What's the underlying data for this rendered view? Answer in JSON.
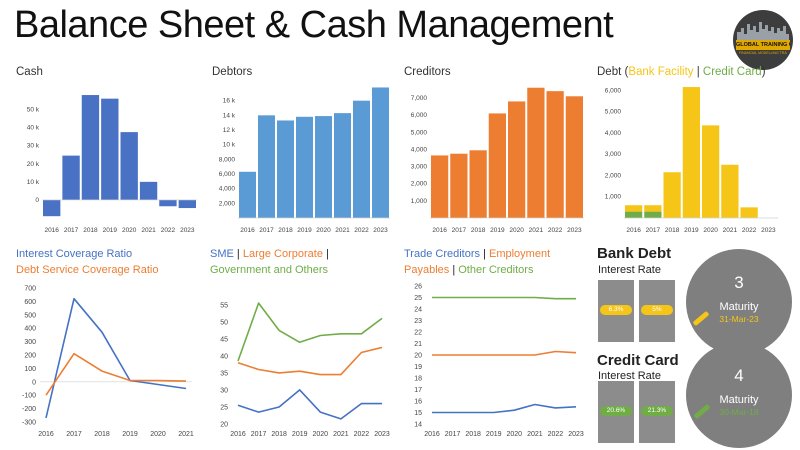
{
  "page": {
    "title": "Balance Sheet & Cash Management",
    "logo_text": "GLOBAL TRAINING CAMP",
    "logo_subtext": "FINANCIAL MODELLING TRAINING"
  },
  "colors": {
    "cash": "#4a72c4",
    "debtors": "#5b9bd5",
    "creditors": "#ed7d31",
    "bank": "#f5c518",
    "green": "#70ad47",
    "blue": "#4472c4",
    "orange": "#ed7d31",
    "grey": "#8c8c8c",
    "darkgrey": "#7f7f7f"
  },
  "titles": {
    "cash": "Cash",
    "debtors": "Debtors",
    "creditors": "Creditors",
    "debt_prefix": "Debt (",
    "debt_bank": "Bank Facility",
    "debt_sep": " | ",
    "debt_card": "Credit Card",
    "debt_suffix": ")",
    "icr": "Interest Coverage Ratio",
    "dscr": "Debt Service Coverage Ratio",
    "sme": "SME",
    "sep1": " | ",
    "large": "Large Corporate",
    "sep2": " |",
    "gov": "Government and Others",
    "trade": "Trade Creditors",
    "sep3": " | ",
    "employ": "Employment",
    "payables": "Payables",
    "sep4": " | ",
    "other": "Other Creditors"
  },
  "bank_debt": {
    "header": "Bank Debt",
    "interest_label": "Interest Rate",
    "rate1": "6.3%",
    "rate2": "5%",
    "years": "3",
    "maturity_label": "Maturity",
    "maturity_date": "31-Mar-23"
  },
  "credit_card": {
    "header": "Credit Card",
    "interest_label": "Interest Rate",
    "rate1": "20.6%",
    "rate2": "21.3%",
    "years": "4",
    "maturity_label": "Maturity",
    "maturity_date": "30-Mar-18"
  },
  "chart_data": [
    {
      "id": "cash",
      "type": "bar",
      "title": "Cash",
      "categories": [
        "2016",
        "2017",
        "2018",
        "2019",
        "2020",
        "2021",
        "2022",
        "2023"
      ],
      "values": [
        -9000,
        24500,
        58000,
        56000,
        37500,
        10000,
        -3500,
        -4500
      ],
      "ylim": [
        -10000,
        63000
      ],
      "yticks": [
        0,
        10000,
        20000,
        30000,
        40000,
        50000
      ],
      "ytick_labels": [
        "0",
        "10 k",
        "20 k",
        "30 k",
        "40 k",
        "50 k"
      ]
    },
    {
      "id": "debtors",
      "type": "bar",
      "title": "Debtors",
      "categories": [
        "2016",
        "2017",
        "2018",
        "2019",
        "2020",
        "2021",
        "2022",
        "2023"
      ],
      "values": [
        6300,
        14000,
        13300,
        13800,
        13900,
        14300,
        16000,
        17800
      ],
      "ylim": [
        0,
        18000
      ],
      "yticks": [
        2000,
        4000,
        6000,
        8000,
        10000,
        12000,
        14000,
        16000
      ],
      "ytick_labels": [
        "2,000",
        "4,000",
        "6,000",
        "8,000",
        "10 k",
        "12 k",
        "14 k",
        "16 k"
      ]
    },
    {
      "id": "creditors",
      "type": "bar",
      "title": "Creditors",
      "categories": [
        "2016",
        "2017",
        "2018",
        "2019",
        "2020",
        "2021",
        "2022",
        "2023"
      ],
      "values": [
        3650,
        3750,
        3950,
        6100,
        6800,
        7600,
        7400,
        7100
      ],
      "ylim": [
        0,
        7700
      ],
      "yticks": [
        1000,
        2000,
        3000,
        4000,
        5000,
        6000,
        7000
      ],
      "ytick_labels": [
        "1,000",
        "2,000",
        "3,000",
        "4,000",
        "5,000",
        "6,000",
        "7,000"
      ]
    },
    {
      "id": "debt",
      "type": "bar",
      "title": "Debt (Bank Facility | Credit Card)",
      "categories": [
        "2016",
        "2017",
        "2018",
        "2019",
        "2020",
        "2021",
        "2022",
        "2023"
      ],
      "series": [
        {
          "name": "Credit Card",
          "values": [
            300,
            300,
            0,
            0,
            0,
            0,
            0,
            0
          ]
        },
        {
          "name": "Bank Facility",
          "values": [
            300,
            300,
            2150,
            6150,
            4350,
            2500,
            500,
            0
          ]
        }
      ],
      "ylim": [
        0,
        6200
      ],
      "yticks": [
        1000,
        2000,
        3000,
        4000,
        5000,
        6000
      ],
      "ytick_labels": [
        "1,000",
        "2,000",
        "3,000",
        "4,000",
        "5,000",
        "6,000"
      ]
    },
    {
      "id": "coverage",
      "type": "line",
      "title": "Interest Coverage Ratio / Debt Service Coverage Ratio",
      "x": [
        "2016",
        "2017",
        "2018",
        "2019",
        "2020",
        "2021"
      ],
      "series": [
        {
          "name": "Interest Coverage Ratio",
          "values": [
            -270,
            620,
            370,
            10,
            -20,
            -50
          ]
        },
        {
          "name": "Debt Service Coverage Ratio",
          "values": [
            -100,
            210,
            80,
            10,
            10,
            5
          ]
        }
      ],
      "ylim": [
        -300,
        700
      ],
      "yticks": [
        -300,
        -200,
        -100,
        0,
        100,
        200,
        300,
        400,
        500,
        600,
        700
      ],
      "ytick_labels": [
        "-300",
        "-200",
        "-100",
        "0",
        "100",
        "200",
        "300",
        "400",
        "500",
        "600",
        "700"
      ]
    },
    {
      "id": "debtor_mix",
      "type": "line",
      "title": "SME | Large Corporate | Government and Others",
      "x": [
        "2016",
        "2017",
        "2018",
        "2019",
        "2020",
        "2021",
        "2022",
        "2023"
      ],
      "series": [
        {
          "name": "SME",
          "values": [
            25.5,
            23.5,
            25,
            30,
            23.5,
            21.5,
            26,
            26
          ]
        },
        {
          "name": "Large Corporate",
          "values": [
            38,
            36,
            35,
            35.5,
            34.5,
            34.5,
            41,
            42.5
          ]
        },
        {
          "name": "Government and Others",
          "values": [
            38.5,
            55.5,
            47.5,
            44,
            46,
            46.5,
            46.5,
            51
          ]
        }
      ],
      "ylim": [
        20,
        57
      ],
      "yticks": [
        20,
        25,
        30,
        35,
        40,
        45,
        50,
        55
      ],
      "ytick_labels": [
        "20",
        "25",
        "30",
        "35",
        "40",
        "45",
        "50",
        "55"
      ]
    },
    {
      "id": "creditor_mix",
      "type": "line",
      "title": "Trade Creditors | Employment Payables | Other Creditors",
      "x": [
        "2016",
        "2017",
        "2018",
        "2019",
        "2020",
        "2021",
        "2022",
        "2023"
      ],
      "series": [
        {
          "name": "Trade Creditors",
          "values": [
            15,
            15,
            15,
            15,
            15.2,
            15.7,
            15.4,
            15.5
          ]
        },
        {
          "name": "Employment Payables",
          "values": [
            20,
            20,
            20,
            20,
            20,
            20,
            20.3,
            20.2
          ]
        },
        {
          "name": "Other Creditors",
          "values": [
            25,
            25,
            25,
            25,
            25,
            25,
            24.9,
            24.9
          ]
        }
      ],
      "ylim": [
        14,
        26
      ],
      "yticks": [
        14,
        15,
        16,
        17,
        18,
        19,
        20,
        21,
        22,
        23,
        24,
        25,
        26
      ],
      "ytick_labels": [
        "14",
        "15",
        "16",
        "17",
        "18",
        "19",
        "20",
        "21",
        "22",
        "23",
        "24",
        "25",
        "26"
      ]
    }
  ]
}
